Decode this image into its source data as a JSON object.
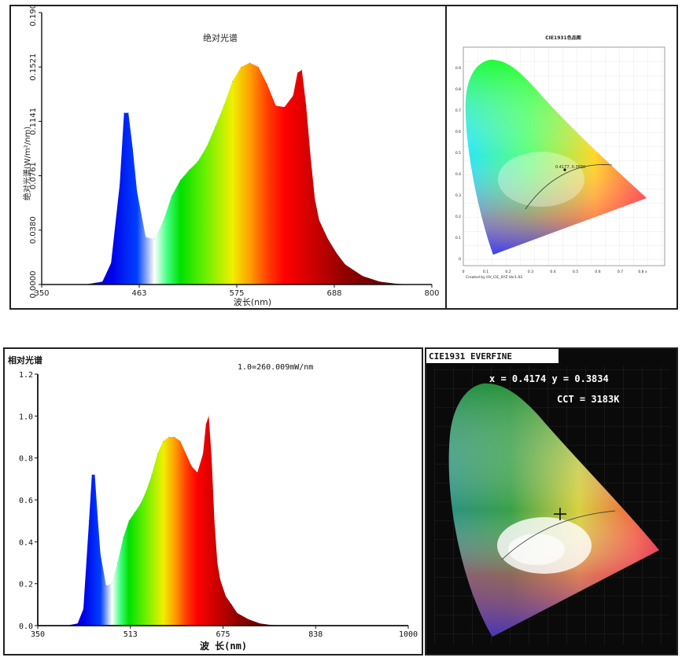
{
  "chart_data": [
    {
      "type": "area",
      "title": "绝对光谱",
      "xlabel": "波长(nm)",
      "ylabel": "绝对光谱(W/m²/nm)",
      "xlim": [
        350,
        800
      ],
      "ylim": [
        0,
        0.1901
      ],
      "xticks": [
        "350",
        "463",
        "575",
        "688",
        "800"
      ],
      "yticks": [
        "0.0000",
        "0.0380",
        "0.0761",
        "0.1141",
        "0.1521",
        "0.1901"
      ],
      "grid": false,
      "x": [
        350,
        400,
        420,
        430,
        440,
        445,
        450,
        455,
        460,
        470,
        480,
        490,
        500,
        510,
        520,
        530,
        540,
        550,
        560,
        570,
        580,
        590,
        600,
        610,
        620,
        630,
        640,
        645,
        650,
        655,
        660,
        665,
        670,
        680,
        690,
        700,
        720,
        740,
        760,
        780,
        800
      ],
      "y": [
        0,
        0,
        0.002,
        0.015,
        0.07,
        0.12,
        0.12,
        0.095,
        0.065,
        0.033,
        0.032,
        0.044,
        0.062,
        0.073,
        0.08,
        0.086,
        0.096,
        0.11,
        0.125,
        0.142,
        0.152,
        0.155,
        0.152,
        0.14,
        0.125,
        0.124,
        0.132,
        0.148,
        0.15,
        0.125,
        0.09,
        0.06,
        0.045,
        0.032,
        0.022,
        0.014,
        0.006,
        0.002,
        0.0005,
        0,
        0
      ]
    },
    {
      "type": "area",
      "title": "相对光谱",
      "annotation": "1.0=260.009mW/nm",
      "xlabel": "波 长(nm)",
      "ylabel": "",
      "xlim": [
        350,
        1000
      ],
      "ylim": [
        0,
        1.2
      ],
      "xticks": [
        "350",
        "513",
        "675",
        "838",
        "1000"
      ],
      "yticks": [
        "0.0",
        "0.2",
        "0.4",
        "0.6",
        "0.8",
        "1.0",
        "1.2"
      ],
      "grid": false,
      "x": [
        350,
        400,
        420,
        430,
        440,
        445,
        450,
        455,
        460,
        470,
        480,
        490,
        500,
        510,
        520,
        530,
        540,
        550,
        560,
        570,
        580,
        590,
        600,
        610,
        620,
        630,
        640,
        645,
        650,
        655,
        660,
        665,
        670,
        680,
        690,
        700,
        720,
        740,
        760,
        800,
        1000
      ],
      "y": [
        0,
        0,
        0.01,
        0.08,
        0.5,
        0.72,
        0.72,
        0.52,
        0.34,
        0.19,
        0.2,
        0.3,
        0.42,
        0.5,
        0.54,
        0.58,
        0.64,
        0.72,
        0.82,
        0.88,
        0.9,
        0.9,
        0.88,
        0.82,
        0.76,
        0.73,
        0.82,
        0.96,
        1.0,
        0.8,
        0.5,
        0.3,
        0.22,
        0.14,
        0.1,
        0.06,
        0.03,
        0.01,
        0.003,
        0,
        0
      ]
    }
  ],
  "cie_top": {
    "title": "CIE1931色品图",
    "footer": "Created by HV_CIE_XYZ Ver1.02",
    "point_label": "0.4177, 0.3830",
    "x_ticks": [
      "0",
      "0.1",
      "0.2",
      "0.3",
      "0.4",
      "0.5",
      "0.6",
      "0.7",
      "0.8 x"
    ],
    "y_ticks": [
      "0.9",
      "0.8",
      "0.7",
      "0.6",
      "0.5",
      "0.4",
      "0.3",
      "0.2",
      "0.1",
      "0"
    ]
  },
  "cie_bottom": {
    "title": "CIE1931 EVERFINE",
    "coords": "x = 0.4174 y = 0.3834",
    "cct": "CCT = 3183K"
  },
  "colors": {
    "frame": "#222222",
    "cie_background": "#0a0a0a",
    "spectrum_blue": "#0000cc",
    "spectrum_red": "#b00000"
  }
}
